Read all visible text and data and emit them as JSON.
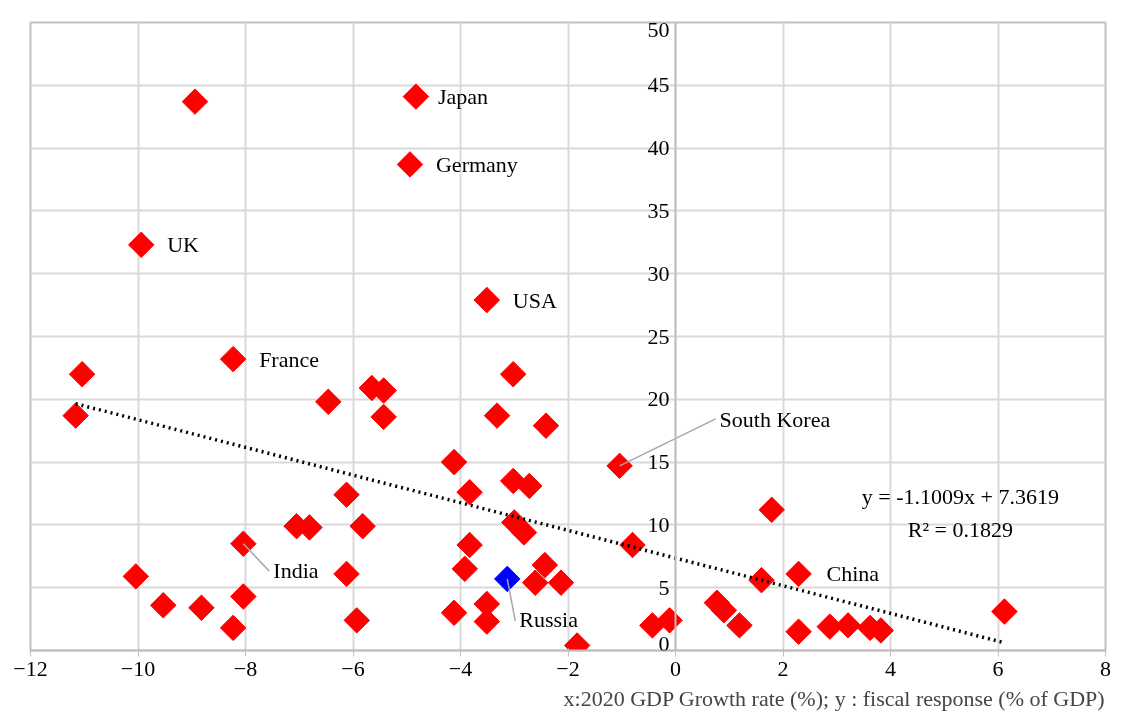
{
  "chart_data": {
    "type": "scatter",
    "xlabel": "x:2020 GDP Growth rate (%); y : fiscal response (% of GDP)",
    "xlim": [
      -12,
      8
    ],
    "ylim": [
      0,
      50
    ],
    "xticks": [
      -12,
      -10,
      -8,
      -6,
      -4,
      -2,
      0,
      2,
      4,
      6,
      8
    ],
    "yticks": [
      0,
      5,
      10,
      15,
      20,
      25,
      30,
      35,
      40,
      45,
      50
    ],
    "grid": true,
    "marker": "diamond",
    "series": [
      {
        "x": [
          -8.94,
          -4.83,
          -4.94,
          -9.94,
          -3.51,
          -8.23,
          -11.04,
          -11.16,
          -6.46,
          -5.65,
          -5.43,
          -5.43,
          -3.02,
          -3.32,
          -2.41,
          -4.12,
          -3.83,
          -3.02,
          -2.72,
          -1.04,
          -6.12,
          -8.04,
          -7.05,
          -6.81,
          -5.82,
          -3.83,
          -3.0,
          -2.82,
          -0.8,
          -10.04,
          -9.53,
          -8.82,
          -8.04,
          -8.23,
          -6.12,
          -5.93,
          -3.92,
          -4.12,
          -3.51,
          -3.51,
          -3.13,
          -2.43,
          -2.61,
          -2.13,
          -1.83,
          -0.43,
          -0.11,
          0.77,
          0.9,
          1.19,
          1.6,
          1.79,
          2.29,
          2.29,
          2.87,
          3.21,
          3.62,
          3.82,
          6.12
        ],
        "values": [
          43.7,
          44.1,
          38.7,
          32.3,
          27.9,
          23.2,
          22.0,
          18.7,
          19.8,
          20.9,
          20.7,
          18.6,
          22.0,
          18.7,
          17.9,
          15.0,
          12.6,
          13.5,
          13.1,
          14.7,
          12.4,
          8.5,
          9.9,
          9.8,
          9.9,
          8.4,
          10.2,
          9.4,
          8.4,
          5.9,
          3.6,
          3.4,
          4.3,
          1.8,
          6.1,
          2.4,
          6.5,
          3.0,
          3.7,
          2.3,
          5.7,
          6.8,
          5.4,
          5.4,
          0.4,
          2.0,
          2.4,
          3.8,
          3.2,
          2.0,
          5.6,
          11.2,
          6.1,
          1.5,
          1.9,
          2.0,
          1.8,
          1.6,
          3.1
        ],
        "colors": [
          "#ff0000",
          "#ff0000",
          "#ff0000",
          "#ff0000",
          "#ff0000",
          "#ff0000",
          "#ff0000",
          "#ff0000",
          "#ff0000",
          "#ff0000",
          "#ff0000",
          "#ff0000",
          "#ff0000",
          "#ff0000",
          "#ff0000",
          "#ff0000",
          "#ff0000",
          "#ff0000",
          "#ff0000",
          "#ff0000",
          "#ff0000",
          "#ff0000",
          "#ff0000",
          "#ff0000",
          "#ff0000",
          "#ff0000",
          "#ff0000",
          "#ff0000",
          "#ff0000",
          "#ff0000",
          "#ff0000",
          "#ff0000",
          "#ff0000",
          "#ff0000",
          "#ff0000",
          "#ff0000",
          "#ff0000",
          "#ff0000",
          "#ff0000",
          "#ff0000",
          "#0000ff",
          "#ff0000",
          "#ff0000",
          "#ff0000",
          "#ff0000",
          "#ff0000",
          "#ff0000",
          "#ff0000",
          "#ff0000",
          "#ff0000",
          "#ff0000",
          "#ff0000",
          "#ff0000",
          "#ff0000",
          "#ff0000",
          "#ff0000",
          "#ff0000",
          "#ff0000",
          "#ff0000"
        ]
      },
      {
        "type": "line",
        "x": [
          -11.16,
          6.12
        ],
        "values": [
          19.65,
          0.62
        ],
        "color": "#000000",
        "line_style": "dotted",
        "marker": "none"
      }
    ],
    "annotations": [
      {
        "text": "Japan",
        "x": -4.83,
        "y": 44.1
      },
      {
        "text": "Germany",
        "x": -4.94,
        "y": 38.7
      },
      {
        "text": "UK",
        "x": -9.94,
        "y": 32.3
      },
      {
        "text": "USA",
        "x": -3.51,
        "y": 27.9
      },
      {
        "text": "France",
        "x": -8.23,
        "y": 23.2
      },
      {
        "text": "South Korea",
        "x": -1.04,
        "y": 14.7
      },
      {
        "text": "India",
        "x": -8.04,
        "y": 8.5
      },
      {
        "text": "Russia",
        "x": -3.13,
        "y": 5.7
      },
      {
        "text": "China",
        "x": 2.29,
        "y": 6.1
      },
      "y = -1.1009x + 7.3619",
      "R² = 0.1829"
    ]
  }
}
